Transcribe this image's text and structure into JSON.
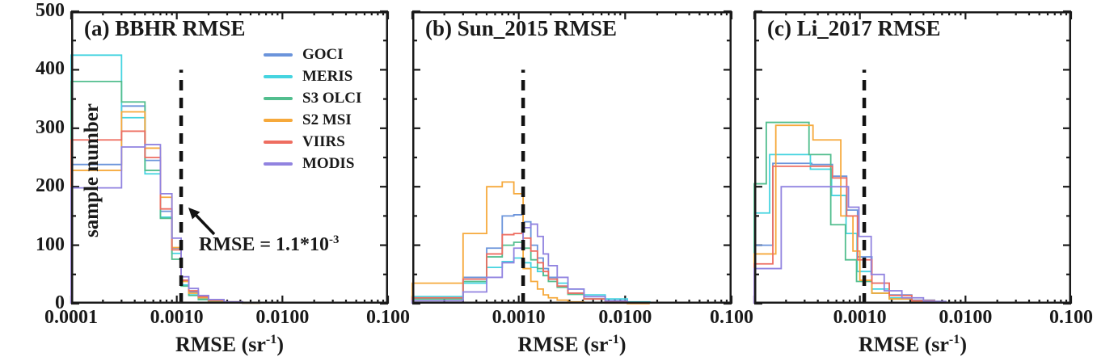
{
  "chart_data": {
    "type": "step-histogram",
    "x_scale": "log",
    "x_range": [
      0.0001,
      0.1
    ],
    "y_range": [
      0,
      500
    ],
    "ylabel": "sample number",
    "xlabel": {
      "main": "RMSE (sr",
      "sup": "-1",
      "close": ")"
    },
    "grid": false,
    "y_ticks": [
      {
        "v": 0,
        "label": "0"
      },
      {
        "v": 100,
        "label": "100"
      },
      {
        "v": 200,
        "label": "200"
      },
      {
        "v": 300,
        "label": "300"
      },
      {
        "v": 400,
        "label": "400"
      },
      {
        "v": 500,
        "label": "500"
      }
    ],
    "y_minor_step": 50,
    "legend": [
      "GOCI",
      "MERIS",
      "S3 OLCI",
      "S2 MSI",
      "VIIRS",
      "MODIS"
    ],
    "legend_position": "upper-right-panel-a",
    "series_colors": {
      "GOCI": "#6b94db",
      "MERIS": "#45d4e0",
      "S3 OLCI": "#52be8e",
      "S2 MSI": "#f6a93b",
      "VIIRS": "#ee6d60",
      "MODIS": "#9183e0"
    },
    "frame_color": "#1a1a1a",
    "reference_line": {
      "value": 0.0011,
      "style": "dashed",
      "color": "#111111",
      "top_count": 400
    },
    "annotation": {
      "prefix": "RMSE = 1.1*10",
      "sup": "-3",
      "panel": "a"
    },
    "panels": [
      {
        "id": "a",
        "title": "(a) BBHR RMSE",
        "x_ticks": [
          {
            "v": 0.0001,
            "label": "0.0001"
          },
          {
            "v": 0.001,
            "label": "0.0010"
          },
          {
            "v": 0.01,
            "label": "0.0100"
          },
          {
            "v": 0.1,
            "label": "0.100"
          }
        ],
        "edges": [
          0.0001,
          0.0003,
          0.0005,
          0.0007,
          0.0009,
          0.0011,
          0.0013,
          0.0016,
          0.002,
          0.0028,
          0.0042,
          0.0062
        ],
        "series": [
          {
            "name": "GOCI",
            "counts": [
              238,
              338,
              245,
              158,
              95,
              40,
              20,
              12,
              6,
              3,
              2
            ]
          },
          {
            "name": "MERIS",
            "counts": [
              425,
              318,
              222,
              148,
              86,
              32,
              15,
              8,
              4,
              2,
              1
            ]
          },
          {
            "name": "S3 OLCI",
            "counts": [
              380,
              345,
              228,
              146,
              76,
              30,
              14,
              7,
              4,
              2,
              1
            ]
          },
          {
            "name": "S2 MSI",
            "counts": [
              228,
              328,
              266,
              182,
              96,
              38,
              18,
              10,
              5,
              2,
              1
            ]
          },
          {
            "name": "VIIRS",
            "counts": [
              280,
              295,
              250,
              162,
              92,
              40,
              22,
              12,
              6,
              3,
              1
            ]
          },
          {
            "name": "MODIS",
            "counts": [
              198,
              268,
              272,
              188,
              112,
              46,
              26,
              14,
              7,
              3,
              2
            ]
          }
        ]
      },
      {
        "id": "b",
        "title": "(b) Sun_2015 RMSE",
        "x_ticks": [
          {
            "v": 0.001,
            "label": "0.0010"
          },
          {
            "v": 0.01,
            "label": "0.0100"
          },
          {
            "v": 0.1,
            "label": "0.100"
          }
        ],
        "edges": [
          0.0001,
          0.0003,
          0.0005,
          0.0007,
          0.0009,
          0.0011,
          0.0013,
          0.0015,
          0.0017,
          0.0019,
          0.0023,
          0.0029,
          0.0041,
          0.0065,
          0.0105,
          0.017
        ],
        "series": [
          {
            "name": "GOCI",
            "counts": [
              10,
              45,
              95,
              150,
              152,
              140,
              100,
              78,
              60,
              45,
              30,
              18,
              8,
              3,
              1
            ]
          },
          {
            "name": "MERIS",
            "counts": [
              12,
              35,
              62,
              72,
              78,
              70,
              62,
              55,
              48,
              42,
              35,
              25,
              15,
              8,
              3
            ]
          },
          {
            "name": "S3 OLCI",
            "counts": [
              8,
              38,
              80,
              100,
              105,
              95,
              75,
              60,
              48,
              38,
              28,
              16,
              8,
              3,
              1
            ]
          },
          {
            "name": "S2 MSI",
            "counts": [
              35,
              120,
              200,
              208,
              188,
              60,
              38,
              25,
              15,
              10,
              6,
              3,
              2,
              1,
              0
            ]
          },
          {
            "name": "VIIRS",
            "counts": [
              10,
              42,
              85,
              118,
              120,
              112,
              90,
              70,
              55,
              42,
              30,
              18,
              8,
              3,
              1
            ]
          },
          {
            "name": "MODIS",
            "counts": [
              5,
              20,
              45,
              70,
              95,
              130,
              136,
              115,
              85,
              65,
              45,
              25,
              12,
              5,
              2
            ]
          }
        ]
      },
      {
        "id": "c",
        "title": "(c) Li_2017 RMSE",
        "x_ticks": [
          {
            "v": 0.001,
            "label": "0.0010"
          },
          {
            "v": 0.01,
            "label": "0.0100"
          },
          {
            "v": 0.1,
            "label": "0.100"
          }
        ],
        "edges": [
          0.0001,
          0.00015,
          0.00035,
          0.00055,
          0.00075,
          0.00095,
          0.0013,
          0.0019,
          0.0031,
          0.0051
        ],
        "series": [
          {
            "name": "GOCI",
            "counts": [
              100,
              240,
              238,
              218,
              160,
              80,
              35,
              15,
              6
            ]
          },
          {
            "name": "MERIS",
            "edges": [
              0.0001,
              0.00014,
              0.00034,
              0.00054,
              0.00074,
              0.00094,
              0.0013,
              0.0019,
              0.0031,
              0.0051
            ],
            "counts": [
              155,
              255,
              230,
              185,
              120,
              55,
              25,
              10,
              4
            ]
          },
          {
            "name": "S3 OLCI",
            "edges": [
              0.0001,
              0.00013,
              0.00033,
              0.00053,
              0.00073,
              0.00093,
              0.0013,
              0.0019,
              0.0031,
              0.0051
            ],
            "counts": [
              205,
              310,
              255,
              135,
              75,
              38,
              18,
              8,
              3
            ]
          },
          {
            "name": "S2 MSI",
            "edges": [
              0.0001,
              0.00016,
              0.00036,
              0.00066,
              0.00086,
              0.001,
              0.0013,
              0.0019,
              0.0031,
              0.0051
            ],
            "counts": [
              85,
              305,
              280,
              150,
              90,
              40,
              18,
              8,
              3
            ]
          },
          {
            "name": "VIIRS",
            "counts": [
              68,
              235,
              235,
              215,
              150,
              75,
              35,
              14,
              5
            ]
          },
          {
            "name": "MODIS",
            "edges": [
              0.0001,
              0.00018,
              0.00048,
              0.00078,
              0.00098,
              0.00128,
              0.0017,
              0.0025,
              0.004,
              0.0065
            ],
            "counts": [
              60,
              200,
              200,
              165,
              115,
              50,
              22,
              10,
              4
            ]
          }
        ]
      }
    ]
  }
}
